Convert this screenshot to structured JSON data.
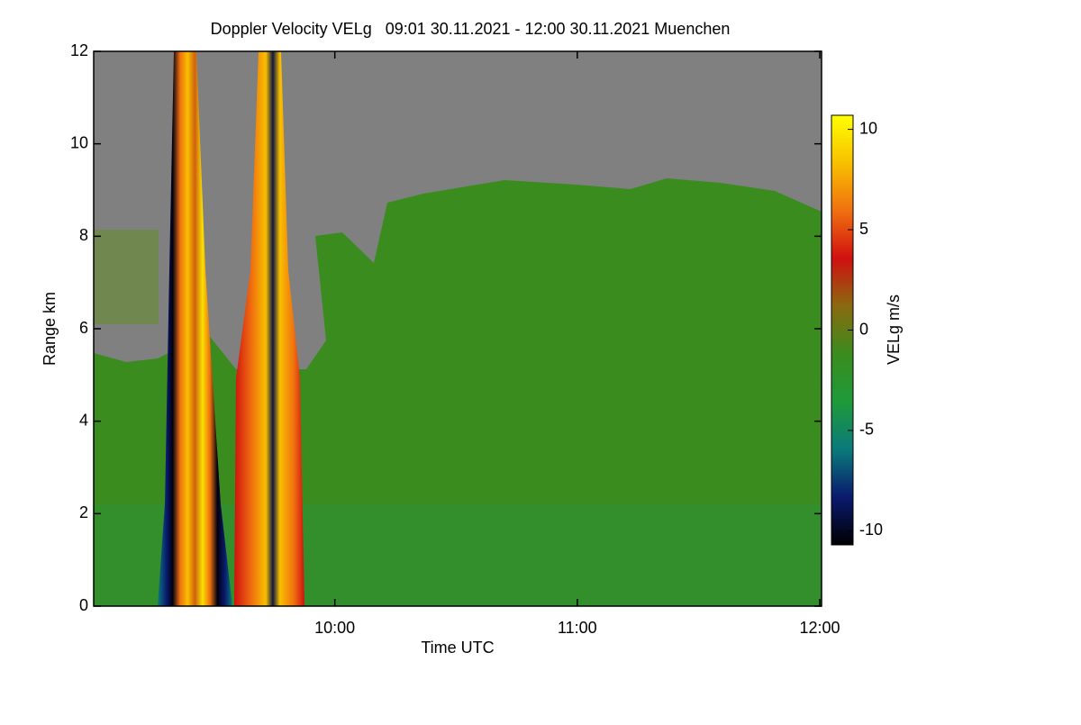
{
  "chart_data": {
    "type": "heatmap",
    "title": "Doppler Velocity VELg   09:01 30.11.2021 - 12:00 30.11.2021 Muenchen",
    "x_label": "Time UTC",
    "y_label": "Range km",
    "xlim": [
      9.0167,
      12.0
    ],
    "xticks": [
      {
        "value": 10,
        "label": "10:00"
      },
      {
        "value": 11,
        "label": "11:00"
      },
      {
        "value": 12,
        "label": "12:00"
      }
    ],
    "ylim": [
      0,
      12
    ],
    "yticks": [
      0,
      2,
      4,
      6,
      8,
      10,
      12
    ],
    "colorbar": {
      "label": "VELg m/s",
      "lim": [
        -10.7,
        10.7
      ],
      "ticks": [
        -10,
        -5,
        0,
        5,
        10
      ],
      "colormap": [
        "#000000",
        "#0a1a6e",
        "#0a7a7a",
        "#1f9a3a",
        "#3a8c1e",
        "#8a6a10",
        "#d01010",
        "#f07010",
        "#f8c000",
        "#ffff00"
      ]
    },
    "grid": false
  }
}
